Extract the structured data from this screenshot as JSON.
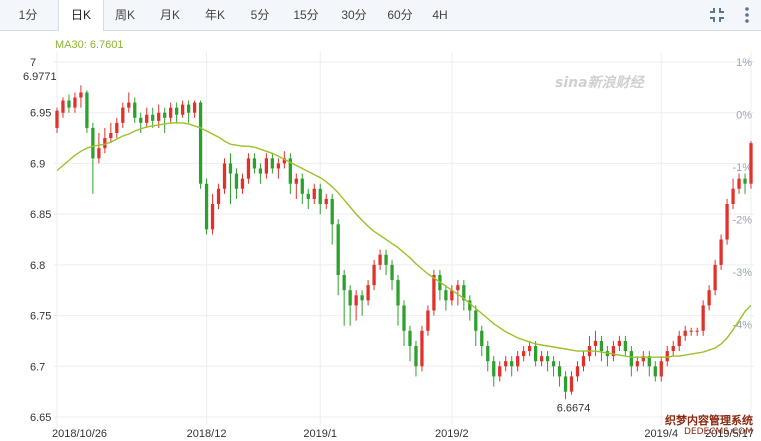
{
  "tabs": [
    "1分",
    "日K",
    "周K",
    "月K",
    "年K",
    "5分",
    "15分",
    "30分",
    "60分",
    "4H"
  ],
  "active_tab": "日K",
  "ma_label": "MA30: 6.7601",
  "watermark_logo": "sina新浪财经",
  "watermark": {
    "line1": "织梦内容管理系统",
    "line2": "DEDECMS.COM"
  },
  "colors": {
    "up": "#e0322b",
    "down": "#2ea02e",
    "ma": "#9cc229",
    "grid": "#eeeeee",
    "axis_text": "#333333",
    "pct_text": "#9aa4b3"
  },
  "icons": {
    "fullscreen": "compress-arrows-icon",
    "menu": "vertical-dots-icon"
  },
  "chart_data": {
    "type": "candlestick",
    "y_ticks": [
      "7",
      "6.95",
      "6.9",
      "6.85",
      "6.8",
      "6.75",
      "6.7",
      "6.65"
    ],
    "pct_ticks": [
      "1%",
      "0%",
      "-1%",
      "-2%",
      "-3%",
      "-4%"
    ],
    "x_labels": [
      "2018/10/26",
      "2018/12",
      "2019/1",
      "2019/2",
      "2019/4",
      "2019/5/17"
    ],
    "annotations": [
      {
        "text": "6.9771"
      },
      {
        "text": "6.6674"
      }
    ],
    "ylim": [
      6.65,
      7.0
    ],
    "high_value": 6.9771,
    "low_value": 6.6674,
    "ma30_last": 6.7601,
    "ohlc": [
      [
        6.935,
        6.952,
        6.93,
        6.955
      ],
      [
        6.95,
        6.962,
        6.945,
        6.965
      ],
      [
        6.962,
        6.955,
        6.95,
        6.968
      ],
      [
        6.955,
        6.965,
        6.95,
        6.97
      ],
      [
        6.965,
        6.97,
        6.955,
        6.977
      ],
      [
        6.97,
        6.935,
        6.93,
        6.972
      ],
      [
        6.935,
        6.905,
        6.87,
        6.94
      ],
      [
        6.905,
        6.915,
        6.9,
        6.93
      ],
      [
        6.915,
        6.925,
        6.91,
        6.935
      ],
      [
        6.925,
        6.93,
        6.92,
        6.94
      ],
      [
        6.93,
        6.94,
        6.925,
        6.945
      ],
      [
        6.94,
        6.955,
        6.935,
        6.96
      ],
      [
        6.955,
        6.96,
        6.95,
        6.97
      ],
      [
        6.96,
        6.945,
        6.94,
        6.965
      ],
      [
        6.945,
        6.94,
        6.93,
        6.95
      ],
      [
        6.94,
        6.948,
        6.935,
        6.955
      ],
      [
        6.948,
        6.942,
        6.935,
        6.955
      ],
      [
        6.942,
        6.95,
        6.935,
        6.958
      ],
      [
        6.95,
        6.945,
        6.93,
        6.955
      ],
      [
        6.945,
        6.955,
        6.94,
        6.96
      ],
      [
        6.955,
        6.948,
        6.94,
        6.96
      ],
      [
        6.948,
        6.958,
        6.945,
        6.962
      ],
      [
        6.958,
        6.95,
        6.94,
        6.962
      ],
      [
        6.95,
        6.96,
        6.945,
        6.962
      ],
      [
        6.96,
        6.88,
        6.875,
        6.962
      ],
      [
        6.88,
        6.835,
        6.83,
        6.885
      ],
      [
        6.835,
        6.86,
        6.83,
        6.87
      ],
      [
        6.86,
        6.875,
        6.855,
        6.88
      ],
      [
        6.875,
        6.9,
        6.87,
        6.905
      ],
      [
        6.9,
        6.89,
        6.86,
        6.91
      ],
      [
        6.89,
        6.875,
        6.865,
        6.895
      ],
      [
        6.875,
        6.885,
        6.87,
        6.89
      ],
      [
        6.885,
        6.905,
        6.88,
        6.91
      ],
      [
        6.905,
        6.895,
        6.89,
        6.91
      ],
      [
        6.895,
        6.89,
        6.88,
        6.9
      ],
      [
        6.89,
        6.905,
        6.885,
        6.91
      ],
      [
        6.905,
        6.895,
        6.89,
        6.91
      ],
      [
        6.895,
        6.9,
        6.885,
        6.905
      ],
      [
        6.9,
        6.905,
        6.895,
        6.912
      ],
      [
        6.905,
        6.88,
        6.87,
        6.91
      ],
      [
        6.88,
        6.885,
        6.865,
        6.89
      ],
      [
        6.885,
        6.87,
        6.86,
        6.89
      ],
      [
        6.87,
        6.865,
        6.855,
        6.875
      ],
      [
        6.865,
        6.875,
        6.86,
        6.88
      ],
      [
        6.875,
        6.86,
        6.85,
        6.88
      ],
      [
        6.86,
        6.865,
        6.855,
        6.87
      ],
      [
        6.865,
        6.84,
        6.82,
        6.87
      ],
      [
        6.84,
        6.79,
        6.77,
        6.845
      ],
      [
        6.79,
        6.775,
        6.74,
        6.795
      ],
      [
        6.775,
        6.76,
        6.74,
        6.78
      ],
      [
        6.76,
        6.77,
        6.745,
        6.775
      ],
      [
        6.77,
        6.765,
        6.75,
        6.775
      ],
      [
        6.765,
        6.78,
        6.76,
        6.785
      ],
      [
        6.78,
        6.8,
        6.775,
        6.805
      ],
      [
        6.8,
        6.81,
        6.795,
        6.815
      ],
      [
        6.81,
        6.8,
        6.79,
        6.815
      ],
      [
        6.8,
        6.785,
        6.775,
        6.805
      ],
      [
        6.785,
        6.76,
        6.74,
        6.79
      ],
      [
        6.76,
        6.735,
        6.72,
        6.765
      ],
      [
        6.735,
        6.72,
        6.705,
        6.74
      ],
      [
        6.72,
        6.7,
        6.69,
        6.725
      ],
      [
        6.7,
        6.735,
        6.695,
        6.74
      ],
      [
        6.735,
        6.755,
        6.73,
        6.76
      ],
      [
        6.755,
        6.79,
        6.75,
        6.795
      ],
      [
        6.79,
        6.775,
        6.765,
        6.795
      ],
      [
        6.775,
        6.765,
        6.755,
        6.78
      ],
      [
        6.765,
        6.775,
        6.76,
        6.78
      ],
      [
        6.775,
        6.78,
        6.76,
        6.785
      ],
      [
        6.78,
        6.765,
        6.755,
        6.785
      ],
      [
        6.765,
        6.755,
        6.745,
        6.77
      ],
      [
        6.755,
        6.735,
        6.72,
        6.76
      ],
      [
        6.735,
        6.72,
        6.71,
        6.74
      ],
      [
        6.72,
        6.705,
        6.695,
        6.725
      ],
      [
        6.705,
        6.69,
        6.68,
        6.71
      ],
      [
        6.69,
        6.7,
        6.685,
        6.705
      ],
      [
        6.7,
        6.705,
        6.695,
        6.71
      ],
      [
        6.705,
        6.7,
        6.69,
        6.71
      ],
      [
        6.7,
        6.71,
        6.695,
        6.715
      ],
      [
        6.71,
        6.715,
        6.705,
        6.72
      ],
      [
        6.715,
        6.72,
        6.71,
        6.725
      ],
      [
        6.72,
        6.705,
        6.7,
        6.725
      ],
      [
        6.705,
        6.71,
        6.7,
        6.715
      ],
      [
        6.71,
        6.705,
        6.695,
        6.715
      ],
      [
        6.705,
        6.7,
        6.69,
        6.71
      ],
      [
        6.7,
        6.69,
        6.68,
        6.705
      ],
      [
        6.69,
        6.675,
        6.6674,
        6.695
      ],
      [
        6.675,
        6.69,
        6.672,
        6.695
      ],
      [
        6.69,
        6.7,
        6.685,
        6.705
      ],
      [
        6.7,
        6.71,
        6.695,
        6.715
      ],
      [
        6.71,
        6.72,
        6.705,
        6.73
      ],
      [
        6.72,
        6.725,
        6.71,
        6.735
      ],
      [
        6.725,
        6.715,
        6.705,
        6.73
      ],
      [
        6.715,
        6.71,
        6.7,
        6.72
      ],
      [
        6.71,
        6.72,
        6.705,
        6.725
      ],
      [
        6.72,
        6.725,
        6.715,
        6.73
      ],
      [
        6.725,
        6.715,
        6.71,
        6.73
      ],
      [
        6.715,
        6.7,
        6.69,
        6.72
      ],
      [
        6.7,
        6.705,
        6.695,
        6.71
      ],
      [
        6.705,
        6.71,
        6.7,
        6.715
      ],
      [
        6.71,
        6.7,
        6.69,
        6.715
      ],
      [
        6.7,
        6.69,
        6.685,
        6.705
      ],
      [
        6.69,
        6.705,
        6.685,
        6.71
      ],
      [
        6.705,
        6.715,
        6.7,
        6.72
      ],
      [
        6.715,
        6.72,
        6.71,
        6.725
      ],
      [
        6.72,
        6.73,
        6.715,
        6.735
      ],
      [
        6.73,
        6.735,
        6.725,
        6.74
      ],
      [
        6.735,
        6.735,
        6.73,
        6.738
      ],
      [
        6.735,
        6.735,
        6.73,
        6.738
      ],
      [
        6.735,
        6.76,
        6.73,
        6.765
      ],
      [
        6.76,
        6.775,
        6.755,
        6.78
      ],
      [
        6.775,
        6.8,
        6.77,
        6.805
      ],
      [
        6.8,
        6.825,
        6.795,
        6.83
      ],
      [
        6.825,
        6.86,
        6.82,
        6.865
      ],
      [
        6.86,
        6.875,
        6.855,
        6.885
      ],
      [
        6.875,
        6.885,
        6.87,
        6.89
      ],
      [
        6.885,
        6.88,
        6.87,
        6.89
      ],
      [
        6.88,
        6.92,
        6.875,
        6.922
      ]
    ],
    "ma30": [
      6.893,
      6.898,
      6.903,
      6.908,
      6.912,
      6.915,
      6.917,
      6.918,
      6.919,
      6.921,
      6.924,
      6.927,
      6.929,
      6.932,
      6.934,
      6.936,
      6.937,
      6.938,
      6.939,
      6.94,
      6.94,
      6.94,
      6.939,
      6.937,
      6.935,
      6.932,
      6.929,
      6.926,
      6.922,
      6.919,
      6.918,
      6.917,
      6.917,
      6.916,
      6.914,
      6.912,
      6.91,
      6.907,
      6.904,
      6.901,
      6.898,
      6.895,
      6.892,
      6.889,
      6.886,
      6.882,
      6.877,
      6.871,
      6.864,
      6.857,
      6.85,
      6.844,
      6.838,
      6.833,
      6.829,
      6.825,
      6.821,
      6.817,
      6.812,
      6.807,
      6.801,
      6.796,
      6.791,
      6.787,
      6.783,
      6.779,
      6.775,
      6.771,
      6.767,
      6.762,
      6.757,
      6.752,
      6.747,
      6.742,
      6.738,
      6.734,
      6.731,
      6.728,
      6.726,
      6.724,
      6.722,
      6.721,
      6.72,
      6.719,
      6.718,
      6.717,
      6.716,
      6.715,
      6.715,
      6.715,
      6.715,
      6.714,
      6.713,
      6.712,
      6.711,
      6.71,
      6.709,
      6.709,
      6.709,
      6.709,
      6.709,
      6.709,
      6.709,
      6.71,
      6.71,
      6.711,
      6.712,
      6.713,
      6.714,
      6.716,
      6.718,
      6.722,
      6.728,
      6.736,
      6.745,
      6.754,
      6.7601
    ]
  }
}
